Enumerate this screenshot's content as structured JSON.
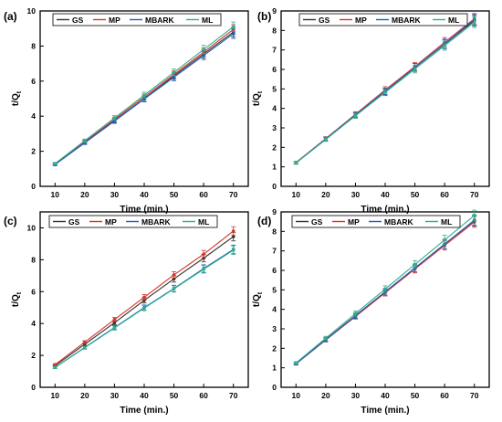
{
  "figure": {
    "panel_labels": [
      "(a)",
      "(b)",
      "(c)",
      "(d)"
    ],
    "legend_labels": [
      "GS",
      "MP",
      "MBARK",
      "ML"
    ],
    "x_axis_title": "Time (min.)",
    "y_axis_title_main": "t/Q",
    "y_axis_title_sub": "t"
  },
  "chart_data": [
    {
      "type": "line",
      "panel": "(a)",
      "xlabel": "Time (min.)",
      "ylabel": "t/Qt",
      "x": [
        10,
        20,
        30,
        40,
        50,
        60,
        70
      ],
      "xlim": [
        5,
        75
      ],
      "ylim": [
        0,
        10
      ],
      "xticks": [
        10,
        20,
        30,
        40,
        50,
        60,
        70
      ],
      "yticks": [
        0,
        2,
        4,
        6,
        8,
        10
      ],
      "legend_position": "top-left",
      "grid": false,
      "series": [
        {
          "name": "GS",
          "color": "#333333",
          "values": [
            1.25,
            2.5,
            3.75,
            5.0,
            6.3,
            7.55,
            8.8
          ]
        },
        {
          "name": "MP",
          "color": "#d9342b",
          "values": [
            1.27,
            2.55,
            3.82,
            5.1,
            6.38,
            7.65,
            8.95
          ]
        },
        {
          "name": "MBARK",
          "color": "#1f5fbf",
          "values": [
            1.24,
            2.48,
            3.72,
            4.98,
            6.22,
            7.46,
            8.7
          ]
        },
        {
          "name": "ML",
          "color": "#2fb08a",
          "values": [
            1.3,
            2.6,
            3.9,
            5.2,
            6.5,
            7.8,
            9.1
          ]
        }
      ]
    },
    {
      "type": "line",
      "panel": "(b)",
      "xlabel": "Time (min.)",
      "ylabel": "t/Qt",
      "x": [
        10,
        20,
        30,
        40,
        50,
        60,
        70
      ],
      "xlim": [
        5,
        75
      ],
      "ylim": [
        0,
        9
      ],
      "xticks": [
        10,
        20,
        30,
        40,
        50,
        60,
        70
      ],
      "yticks": [
        0,
        1,
        2,
        3,
        4,
        5,
        6,
        7,
        8,
        9
      ],
      "legend_position": "top",
      "grid": false,
      "series": [
        {
          "name": "GS",
          "color": "#333333",
          "values": [
            1.2,
            2.42,
            3.65,
            4.85,
            6.1,
            7.3,
            8.5
          ]
        },
        {
          "name": "MP",
          "color": "#d9342b",
          "values": [
            1.22,
            2.45,
            3.7,
            4.95,
            6.15,
            7.4,
            8.6
          ]
        },
        {
          "name": "MBARK",
          "color": "#1f5fbf",
          "values": [
            1.21,
            2.43,
            3.66,
            4.88,
            6.1,
            7.32,
            8.55
          ]
        },
        {
          "name": "ML",
          "color": "#2fb08a",
          "values": [
            1.2,
            2.4,
            3.62,
            4.82,
            6.02,
            7.22,
            8.42
          ]
        }
      ]
    },
    {
      "type": "line",
      "panel": "(c)",
      "xlabel": "Time (min.)",
      "ylabel": "t/Qt",
      "x": [
        10,
        20,
        30,
        40,
        50,
        60,
        70
      ],
      "xlim": [
        5,
        75
      ],
      "ylim": [
        0,
        11
      ],
      "xticks": [
        10,
        20,
        30,
        40,
        50,
        60,
        70
      ],
      "yticks": [
        0,
        2,
        4,
        6,
        8,
        10
      ],
      "legend_position": "top",
      "grid": false,
      "series": [
        {
          "name": "GS",
          "color": "#333333",
          "values": [
            1.35,
            2.7,
            4.05,
            5.45,
            6.8,
            8.1,
            9.45
          ]
        },
        {
          "name": "MP",
          "color": "#d9342b",
          "values": [
            1.42,
            2.83,
            4.25,
            5.65,
            7.05,
            8.35,
            9.8
          ]
        },
        {
          "name": "MBARK",
          "color": "#1f5fbf",
          "values": [
            1.25,
            2.5,
            3.75,
            5.0,
            6.2,
            7.45,
            8.65
          ]
        },
        {
          "name": "ML",
          "color": "#2fb08a",
          "values": [
            1.24,
            2.48,
            3.72,
            4.97,
            6.17,
            7.4,
            8.6
          ]
        }
      ]
    },
    {
      "type": "line",
      "panel": "(d)",
      "xlabel": "Time (min.)",
      "ylabel": "t/Qt",
      "x": [
        10,
        20,
        30,
        40,
        50,
        60,
        70
      ],
      "xlim": [
        5,
        75
      ],
      "ylim": [
        0,
        9
      ],
      "xticks": [
        10,
        20,
        30,
        40,
        50,
        60,
        70
      ],
      "yticks": [
        0,
        1,
        2,
        3,
        4,
        5,
        6,
        7,
        8,
        9
      ],
      "legend_position": "top",
      "grid": false,
      "series": [
        {
          "name": "GS",
          "color": "#333333",
          "values": [
            1.22,
            2.45,
            3.68,
            4.9,
            6.12,
            7.35,
            8.55
          ]
        },
        {
          "name": "MP",
          "color": "#d9342b",
          "values": [
            1.2,
            2.42,
            3.63,
            4.85,
            6.07,
            7.28,
            8.48
          ]
        },
        {
          "name": "MBARK",
          "color": "#1f5fbf",
          "values": [
            1.21,
            2.44,
            3.67,
            4.9,
            6.12,
            7.35,
            8.58
          ]
        },
        {
          "name": "ML",
          "color": "#2fb08a",
          "values": [
            1.25,
            2.52,
            3.78,
            5.04,
            6.3,
            7.56,
            8.82
          ]
        }
      ]
    }
  ]
}
